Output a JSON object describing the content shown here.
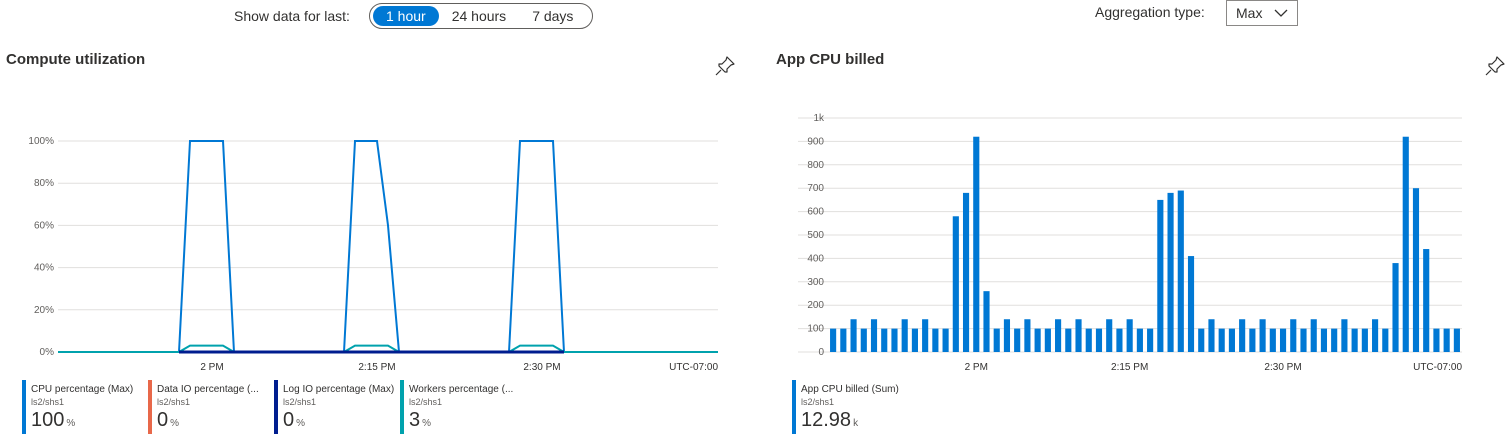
{
  "controls": {
    "show_label": "Show data for last:",
    "ranges": [
      "1 hour",
      "24 hours",
      "7 days"
    ],
    "active_range": "1 hour",
    "aggregation_label": "Aggregation type:",
    "aggregation_value": "Max"
  },
  "left_chart": {
    "title": "Compute utilization",
    "legend": [
      {
        "name": "CPU percentage (Max)",
        "resource": "ls2/shs1",
        "value": "100",
        "unit": "%",
        "color": "#0078d4"
      },
      {
        "name": "Data IO percentage (...",
        "resource": "ls2/shs1",
        "value": "0",
        "unit": "%",
        "color": "#e8684a"
      },
      {
        "name": "Log IO percentage (Max)",
        "resource": "ls2/shs1",
        "value": "0",
        "unit": "%",
        "color": "#001d8f"
      },
      {
        "name": "Workers percentage (...",
        "resource": "ls2/shs1",
        "value": "3",
        "unit": "%",
        "color": "#00a2ad"
      }
    ]
  },
  "right_chart": {
    "title": "App CPU billed",
    "legend": [
      {
        "name": "App CPU billed (Sum)",
        "resource": "ls2/shs1",
        "value": "12.98",
        "unit": "k",
        "color": "#0078d4"
      }
    ]
  },
  "chart_data": [
    {
      "type": "line",
      "title": "Compute utilization",
      "y_ticks": [
        "0%",
        "20%",
        "40%",
        "60%",
        "80%",
        "100%"
      ],
      "ylim": [
        0,
        100
      ],
      "x_ticks": [
        "2 PM",
        "2:15 PM",
        "2:30 PM"
      ],
      "x_ticks_minutes": [
        14,
        29,
        44
      ],
      "timezone_label": "UTC-07:00",
      "xlim_minutes": [
        0,
        60
      ],
      "grid": true,
      "series": [
        {
          "name": "CPU percentage (Max)",
          "color": "#0078d4",
          "x": [
            0,
            11,
            12,
            15,
            16,
            26,
            27,
            29,
            30,
            31,
            41,
            42,
            45,
            46,
            60
          ],
          "y": [
            0,
            0,
            100,
            100,
            0,
            0,
            100,
            100,
            60,
            0,
            0,
            100,
            100,
            0,
            0
          ]
        },
        {
          "name": "Workers percentage (...",
          "color": "#00a2ad",
          "x": [
            0,
            11,
            12,
            15,
            16,
            26,
            27,
            30,
            31,
            41,
            42,
            45,
            46,
            60
          ],
          "y": [
            0,
            0,
            3,
            3,
            0,
            0,
            3,
            3,
            0,
            0,
            3,
            3,
            0,
            0
          ]
        },
        {
          "name": "Log IO percentage (Max)",
          "color": "#001d8f",
          "x": [
            11,
            16,
            26,
            31,
            41,
            46
          ],
          "y": [
            0,
            0,
            0,
            0,
            0,
            0
          ]
        }
      ]
    },
    {
      "type": "bar",
      "title": "App CPU billed",
      "y_ticks": [
        "0",
        "100",
        "200",
        "300",
        "400",
        "500",
        "600",
        "700",
        "800",
        "900",
        "1k"
      ],
      "ylim": [
        0,
        1000
      ],
      "x_ticks": [
        "2 PM",
        "2:15 PM",
        "2:30 PM"
      ],
      "x_tick_indices": [
        14,
        29,
        44
      ],
      "timezone_label": "UTC-07:00",
      "grid": true,
      "values": [
        100,
        100,
        140,
        100,
        140,
        100,
        100,
        140,
        100,
        140,
        100,
        100,
        580,
        680,
        920,
        260,
        100,
        140,
        100,
        140,
        100,
        100,
        140,
        100,
        140,
        100,
        100,
        140,
        100,
        140,
        100,
        100,
        650,
        680,
        690,
        410,
        100,
        140,
        100,
        100,
        140,
        100,
        140,
        100,
        100,
        140,
        100,
        140,
        100,
        100,
        140,
        100,
        100,
        140,
        100,
        380,
        920,
        700,
        440,
        100,
        100,
        100
      ]
    }
  ]
}
